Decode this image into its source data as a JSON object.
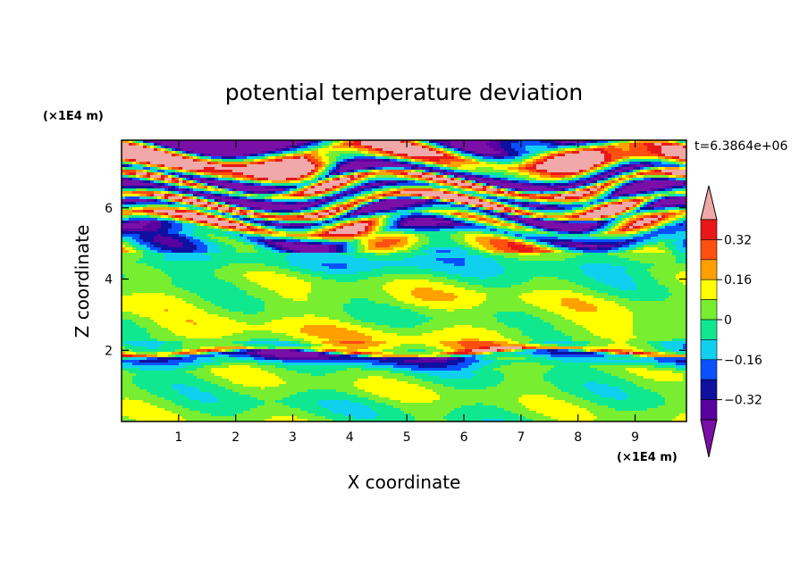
{
  "chart_data": {
    "type": "heatmap",
    "title": "potential temperature deviation",
    "xlabel": "X coordinate",
    "ylabel": "Z coordinate",
    "x_unit": "(×1E4 m)",
    "y_unit": "(×1E4 m)",
    "xlim": [
      0,
      9.9
    ],
    "ylim": [
      0,
      7.9
    ],
    "x_ticks": [
      1,
      2,
      3,
      4,
      5,
      6,
      7,
      8,
      9
    ],
    "y_ticks": [
      2,
      4,
      6
    ],
    "time_label": "t=6.3864e+06",
    "colorbar": {
      "levels": [
        -0.48,
        -0.4,
        -0.32,
        -0.24,
        -0.16,
        -0.08,
        0,
        0.08,
        0.16,
        0.24,
        0.32,
        0.4
      ],
      "labeled_levels": [
        "0.32",
        "0.16",
        "0",
        "−0.16",
        "−0.32"
      ],
      "labeled_values": [
        0.32,
        0.16,
        0,
        -0.16,
        -0.32
      ],
      "colors": [
        "#7a0fa8",
        "#5a00a0",
        "#1010a0",
        "#0a50ff",
        "#10d0f0",
        "#10e890",
        "#78ee30",
        "#ffff00",
        "#ffa000",
        "#ff5010",
        "#e81818",
        "#f0a8a8"
      ],
      "extend": "both"
    },
    "band_profile": {
      "description_free": true,
      "z": [
        0.0,
        0.5,
        1.0,
        1.5,
        1.9,
        2.0,
        2.1,
        2.5,
        3.0,
        3.5,
        4.0,
        4.5,
        5.0,
        5.3,
        5.6,
        5.9,
        6.1,
        6.4,
        6.7,
        6.9,
        7.2,
        7.5,
        7.9
      ],
      "value": [
        0.02,
        0.0,
        0.03,
        0.0,
        -0.3,
        0.3,
        0.05,
        0.1,
        0.03,
        0.08,
        0.02,
        -0.1,
        0.05,
        -0.25,
        0.3,
        -0.45,
        0.45,
        -0.45,
        0.45,
        -0.45,
        0.3,
        0.45,
        -0.45
      ]
    }
  }
}
